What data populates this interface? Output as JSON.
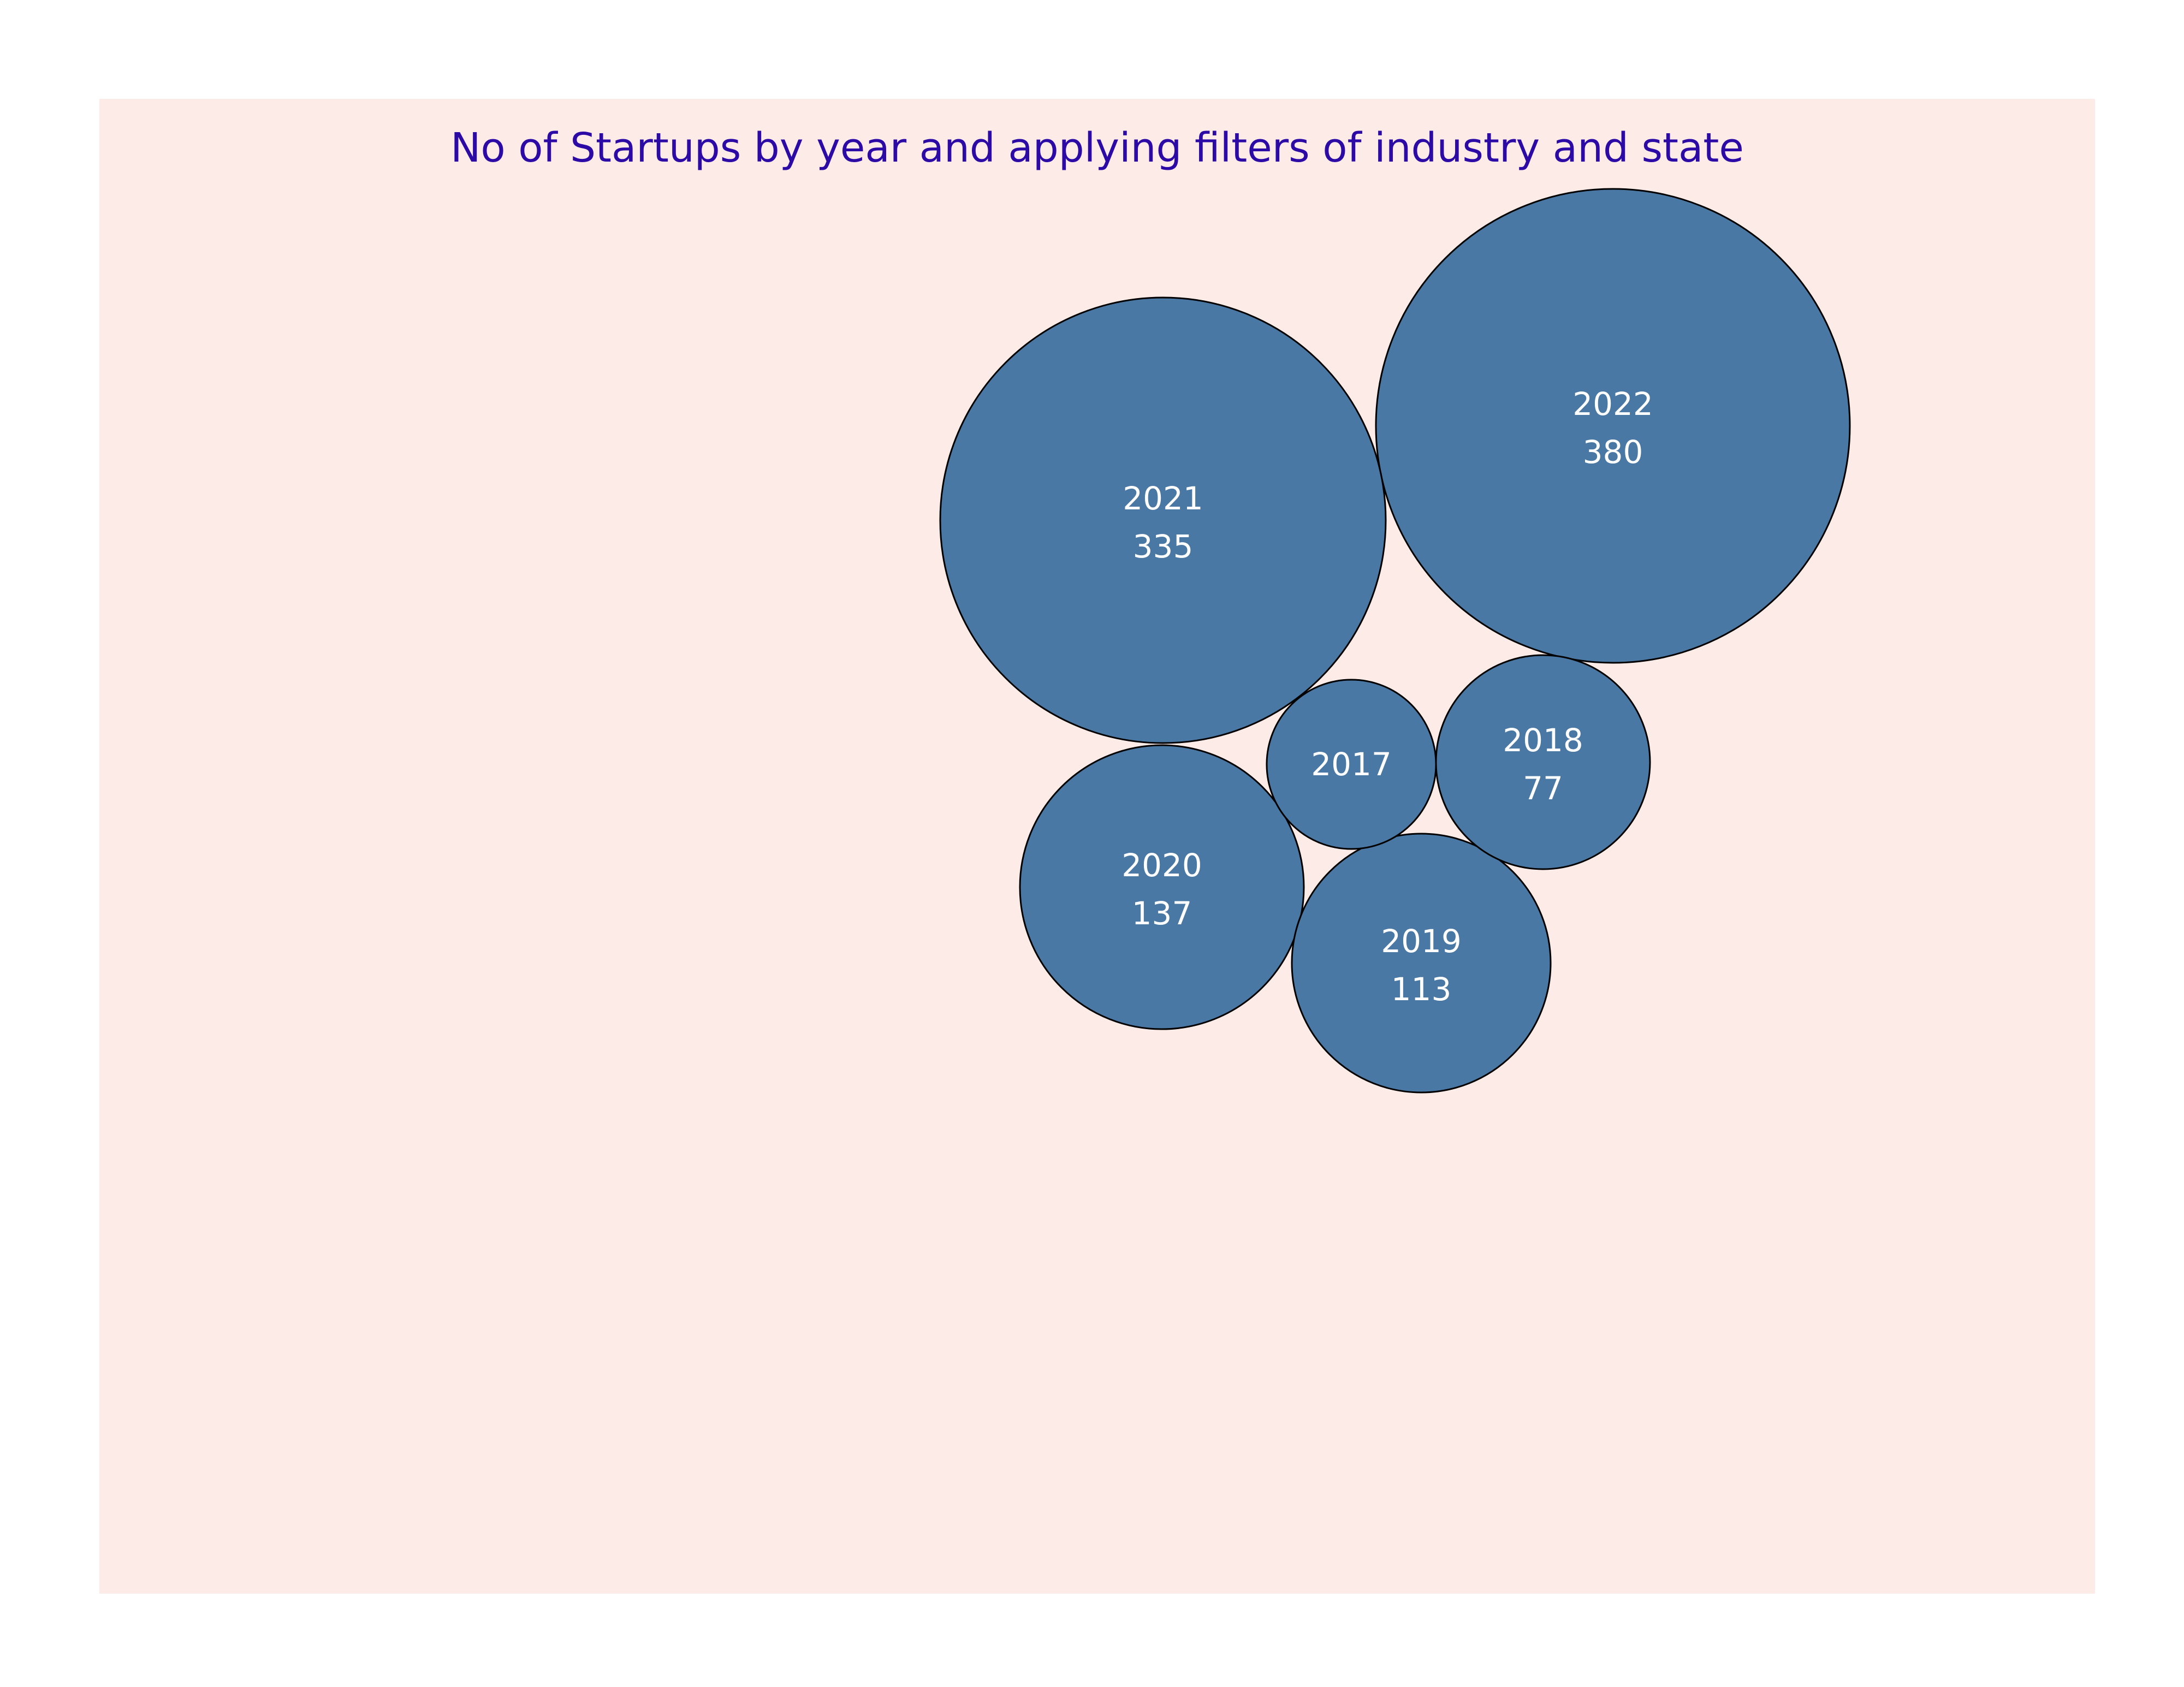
{
  "chart_data": {
    "type": "bubble",
    "title": "No of Startups by year and applying filters of industry and state",
    "items": [
      {
        "year": "2022",
        "count": 380,
        "label": "380"
      },
      {
        "year": "2021",
        "count": 335,
        "label": "335"
      },
      {
        "year": "2020",
        "count": 137,
        "label": "137"
      },
      {
        "year": "2019",
        "count": 113,
        "label": "113"
      },
      {
        "year": "2018",
        "count": 77,
        "label": "77"
      },
      {
        "year": "2017",
        "count": null,
        "label": ""
      }
    ]
  },
  "colors": {
    "background": "#ffffff",
    "panel": "#fdebe8",
    "bubble_fill": "#4a78a4",
    "bubble_stroke": "#000000",
    "title": "#2b0aa6",
    "label": "#ffffff"
  }
}
